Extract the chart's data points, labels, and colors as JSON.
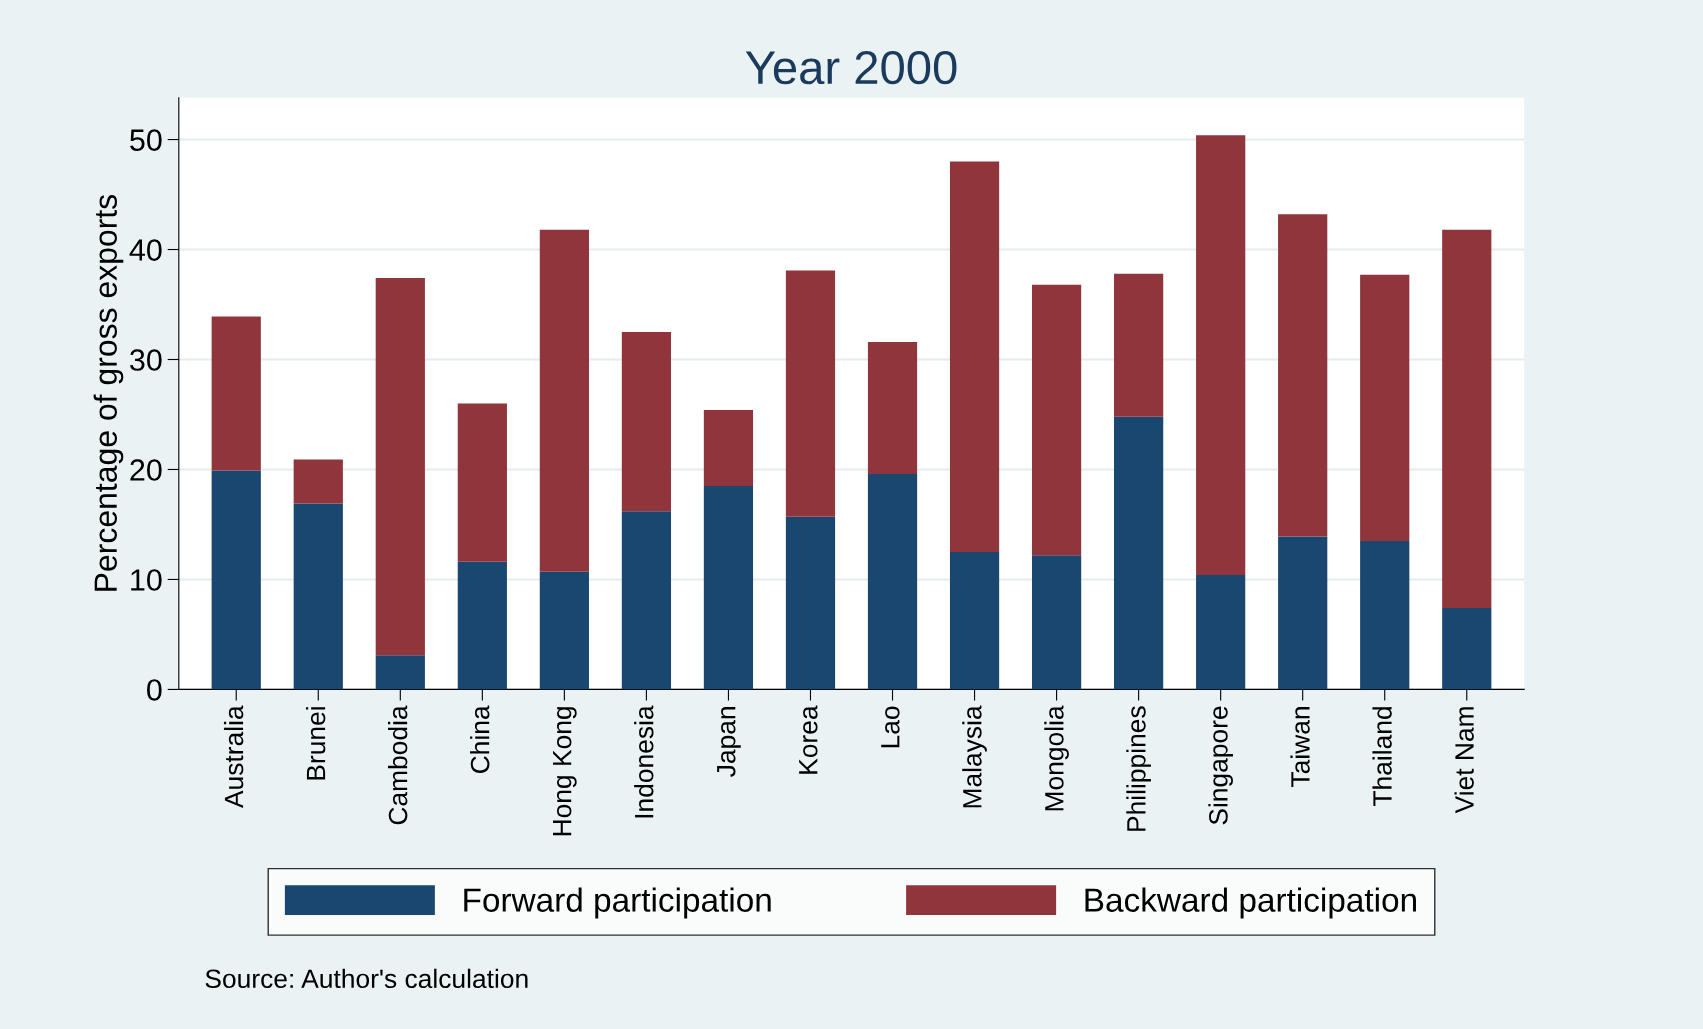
{
  "chart_data": {
    "type": "bar",
    "title": "Year 2000",
    "ylabel": "Percentage of gross exports",
    "categories": [
      "Australia",
      "Brunei",
      "Cambodia",
      "China",
      "Hong Kong",
      "Indonesia",
      "Japan",
      "Korea",
      "Lao",
      "Malaysia",
      "Mongolia",
      "Philippines",
      "Singapore",
      "Taiwan",
      "Thailand",
      "Viet Nam"
    ],
    "series": [
      {
        "name": "Forward participation",
        "color": "#1a476f",
        "values": [
          19.9,
          16.9,
          3.1,
          11.6,
          10.7,
          16.2,
          18.5,
          15.7,
          19.6,
          12.5,
          12.2,
          24.8,
          10.4,
          13.9,
          13.5,
          7.4
        ]
      },
      {
        "name": "Backward participation",
        "color": "#90353b",
        "values": [
          14.0,
          4.0,
          34.3,
          14.4,
          31.1,
          16.3,
          6.9,
          22.4,
          12.0,
          35.5,
          24.6,
          13.0,
          40.0,
          29.3,
          24.2,
          34.4
        ]
      }
    ],
    "stacked": true,
    "ylim": [
      0,
      53.8
    ],
    "yticks": [
      0,
      10,
      20,
      30,
      40,
      50
    ],
    "grid": "y",
    "legend": "bottom",
    "annotations": [
      "Source: Author's calculation"
    ]
  }
}
